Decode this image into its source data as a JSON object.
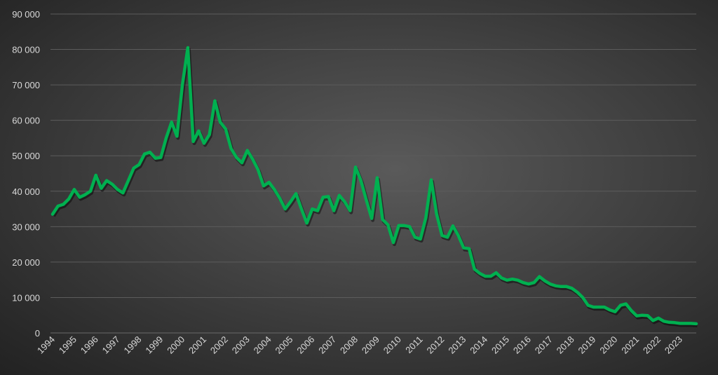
{
  "chart_data": {
    "type": "line",
    "title": "",
    "xlabel": "",
    "ylabel": "",
    "ylim": [
      0,
      90000
    ],
    "yticks": [
      "0",
      "10 000",
      "20 000",
      "30 000",
      "40 000",
      "50 000",
      "60 000",
      "70 000",
      "80 000",
      "90 000"
    ],
    "grid": true,
    "legend": "none",
    "line_color": "#00b050",
    "x_tick_labels": [
      "1994",
      "1995",
      "1996",
      "1997",
      "1998",
      "1999",
      "2000",
      "2001",
      "2002",
      "2003",
      "2004",
      "2005",
      "2006",
      "2007",
      "2008",
      "2009",
      "2010",
      "2011",
      "2012",
      "2013",
      "2014",
      "2015",
      "2016",
      "2017",
      "2018",
      "2019",
      "2020",
      "2021",
      "2022",
      "2023"
    ],
    "x_frequency": "quarterly",
    "series": [
      {
        "values": [
          33500,
          35800,
          36300,
          37800,
          40500,
          38300,
          39000,
          40000,
          44500,
          40800,
          43000,
          42000,
          40500,
          39500,
          43000,
          46500,
          47500,
          50500,
          51000,
          49300,
          49500,
          55000,
          59500,
          55500,
          70000,
          80500,
          54000,
          57000,
          53500,
          56000,
          65500,
          59500,
          57500,
          52000,
          49500,
          48000,
          51500,
          49000,
          46000,
          41500,
          42500,
          40500,
          38000,
          35000,
          37000,
          39300,
          35000,
          31000,
          35000,
          34500,
          38300,
          38500,
          34500,
          38800,
          37000,
          34500,
          46800,
          43000,
          37500,
          32300,
          43800,
          32000,
          30500,
          25500,
          30300,
          30300,
          30000,
          27000,
          26500,
          32500,
          43200,
          33500,
          27500,
          27000,
          30200,
          27500,
          24000,
          23800,
          18000,
          16800,
          16000,
          16000,
          17000,
          15500,
          14900,
          15200,
          14900,
          14200,
          13800,
          14200,
          15900,
          14700,
          13800,
          13300,
          13100,
          13100,
          12600,
          11500,
          10000,
          7800,
          7300,
          7300,
          7300,
          6500,
          6000,
          7800,
          8200,
          6300,
          4800,
          5000,
          4900,
          3500,
          4200,
          3300,
          3000,
          2900,
          2700,
          2700,
          2700,
          2600
        ]
      }
    ]
  }
}
